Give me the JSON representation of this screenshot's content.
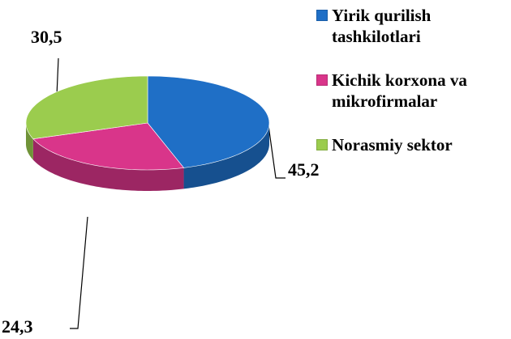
{
  "chart_data": {
    "type": "pie3d",
    "categories": [
      "Yirik qurilish tashkilotlari",
      "Kichik korxona va mikrofirmalar",
      "Norasmiy sektor"
    ],
    "values": [
      45.2,
      24.3,
      30.5
    ],
    "value_labels": [
      "45,2",
      "24,3",
      "30,5"
    ],
    "colors": [
      "#1f6fc6",
      "#d9358a",
      "#9bcc4e"
    ],
    "legend": "right"
  }
}
